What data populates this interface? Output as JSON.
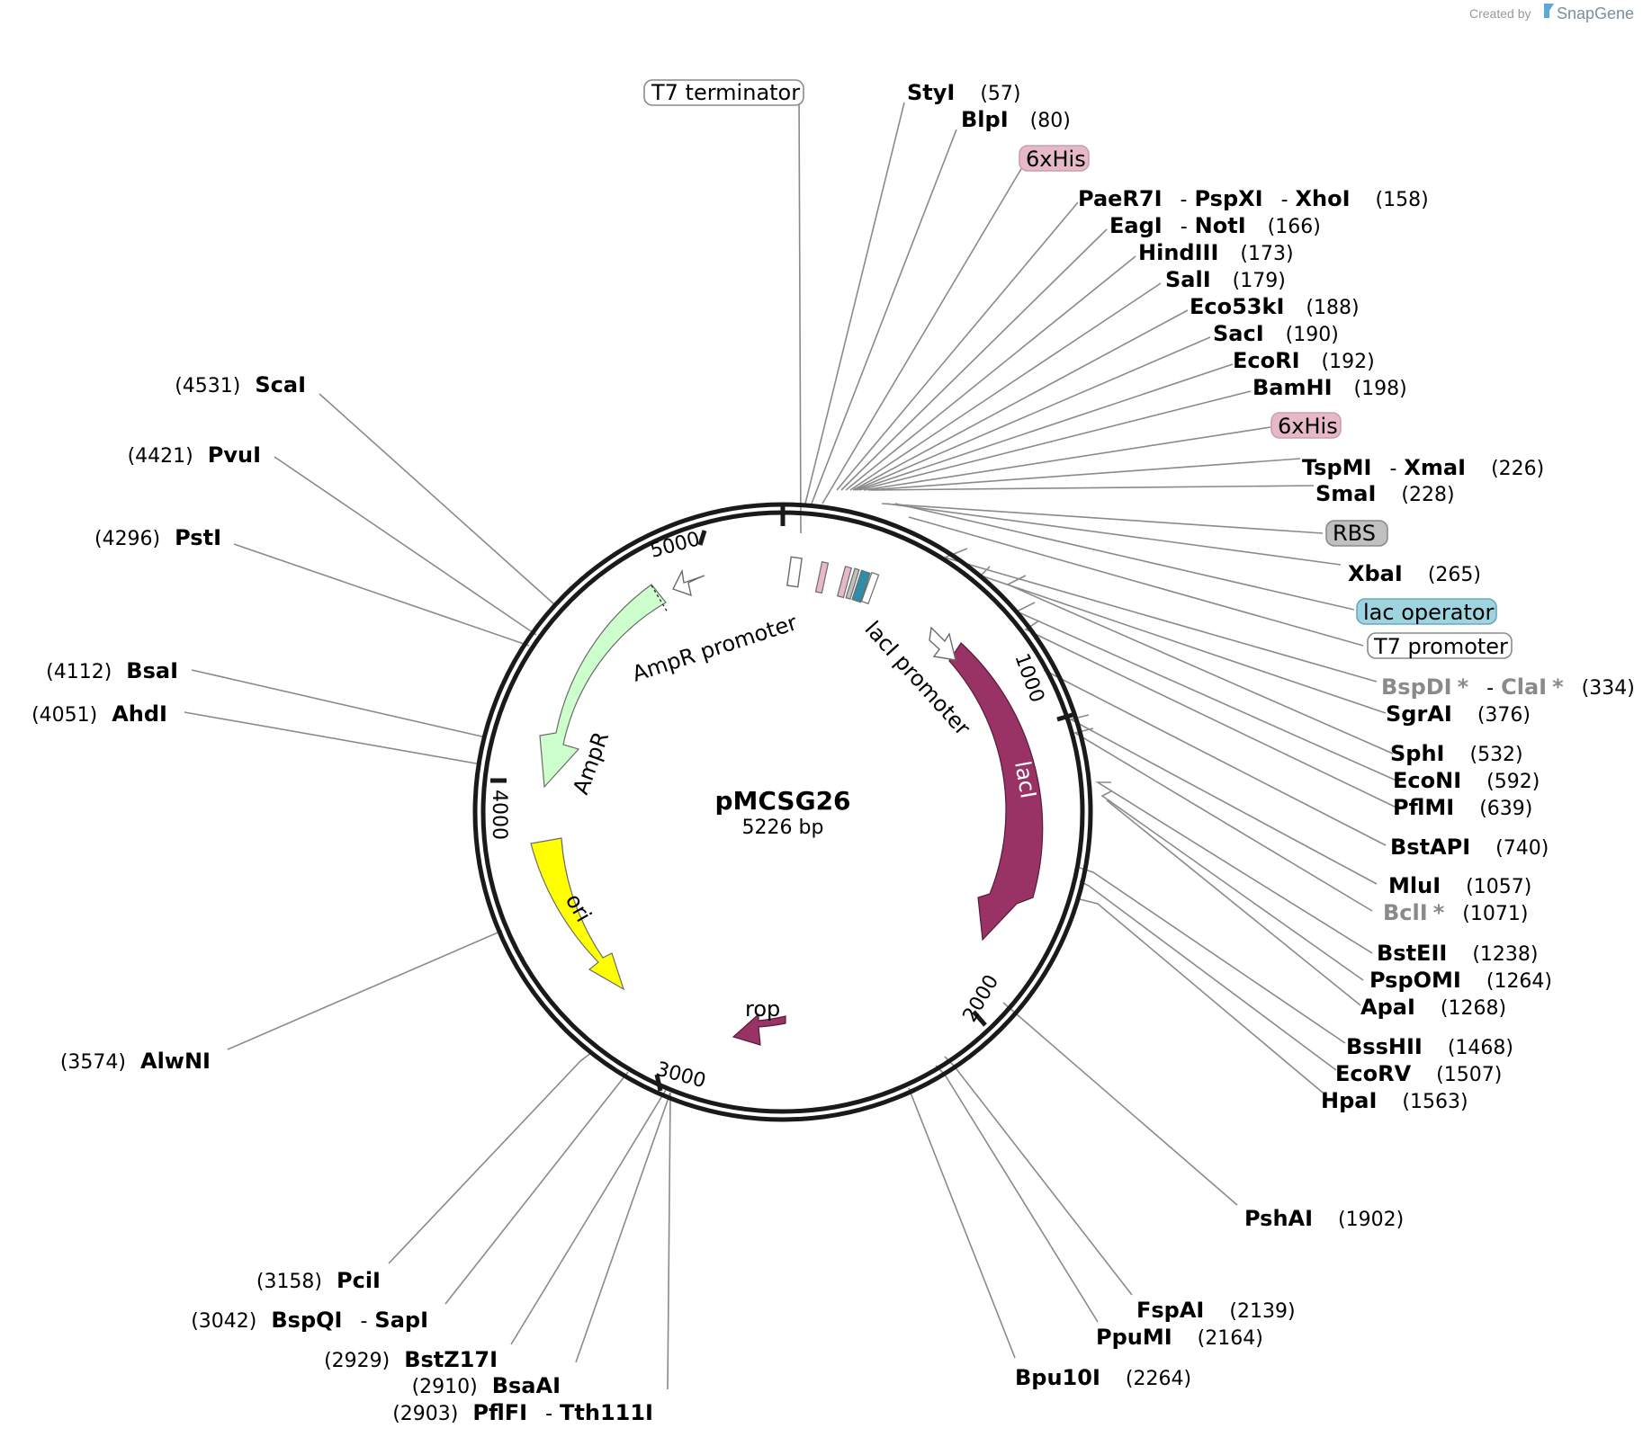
{
  "credit": {
    "prefix": "Created by",
    "brand": "SnapGene",
    "brand_color": "#5aa9d6"
  },
  "plasmid": {
    "name": "pMCSG26",
    "size": "5226 bp"
  },
  "ticks": [
    "1000",
    "2000",
    "3000",
    "4000",
    "5000"
  ],
  "features": {
    "ampr": {
      "label": "AmpR",
      "color": "#ccffcc"
    },
    "ampr_promoter": {
      "label": "AmpR promoter",
      "color": "#ffffff"
    },
    "ori": {
      "label": "ori",
      "color": "#ffff00"
    },
    "laci": {
      "label": "lacI",
      "color": "#993366"
    },
    "laci_promoter": {
      "label": "lacI promoter",
      "color": "#ffffff"
    },
    "rop": {
      "label": "rop",
      "color": "#993366"
    },
    "t7_terminator": {
      "label": "T7 terminator",
      "color": "#ffffff"
    },
    "his1": {
      "label": "6xHis",
      "color": "#e6b8c8"
    },
    "his2": {
      "label": "6xHis",
      "color": "#e6b8c8"
    },
    "rbs": {
      "label": "RBS",
      "color": "#c0c0c0"
    },
    "lac_operator": {
      "label": "lac operator",
      "color": "#9ed4e0"
    },
    "t7_promoter": {
      "label": "T7 promoter",
      "color": "#ffffff"
    }
  },
  "sites": {
    "styi": {
      "names": [
        "StyI"
      ],
      "pos": "(57)"
    },
    "blpi": {
      "names": [
        "BlpI"
      ],
      "pos": "(80)"
    },
    "paer7i": {
      "names": [
        "PaeR7I",
        "PspXI",
        "XhoI"
      ],
      "pos": "(158)"
    },
    "eagi": {
      "names": [
        "EagI",
        "NotI"
      ],
      "pos": "(166)"
    },
    "hindiii": {
      "names": [
        "HindIII"
      ],
      "pos": "(173)"
    },
    "sali": {
      "names": [
        "SalI"
      ],
      "pos": "(179)"
    },
    "eco53ki": {
      "names": [
        "Eco53kI"
      ],
      "pos": "(188)"
    },
    "saci": {
      "names": [
        "SacI"
      ],
      "pos": "(190)"
    },
    "ecori": {
      "names": [
        "EcoRI"
      ],
      "pos": "(192)"
    },
    "bamhi": {
      "names": [
        "BamHI"
      ],
      "pos": "(198)"
    },
    "tspmi": {
      "names": [
        "TspMI",
        "XmaI"
      ],
      "pos": "(226)"
    },
    "smai": {
      "names": [
        "SmaI"
      ],
      "pos": "(228)"
    },
    "xbai": {
      "names": [
        "XbaI"
      ],
      "pos": "(265)"
    },
    "bspdi": {
      "names": [
        "BspDI",
        "ClaI"
      ],
      "star": "*",
      "pos": "(334)"
    },
    "sgrai": {
      "names": [
        "SgrAI"
      ],
      "pos": "(376)"
    },
    "sphi": {
      "names": [
        "SphI"
      ],
      "pos": "(532)"
    },
    "econi": {
      "names": [
        "EcoNI"
      ],
      "pos": "(592)"
    },
    "pflmi": {
      "names": [
        "PflMI"
      ],
      "pos": "(639)"
    },
    "bstapi": {
      "names": [
        "BstAPI"
      ],
      "pos": "(740)"
    },
    "mlui": {
      "names": [
        "MluI"
      ],
      "pos": "(1057)"
    },
    "bcli": {
      "names": [
        "BclI"
      ],
      "star": "*",
      "pos": "(1071)"
    },
    "bsteii": {
      "names": [
        "BstEII"
      ],
      "pos": "(1238)"
    },
    "pspomi": {
      "names": [
        "PspOMI"
      ],
      "pos": "(1264)"
    },
    "apai": {
      "names": [
        "ApaI"
      ],
      "pos": "(1268)"
    },
    "bsshii": {
      "names": [
        "BssHII"
      ],
      "pos": "(1468)"
    },
    "ecorv": {
      "names": [
        "EcoRV"
      ],
      "pos": "(1507)"
    },
    "hpai": {
      "names": [
        "HpaI"
      ],
      "pos": "(1563)"
    },
    "pshai": {
      "names": [
        "PshAI"
      ],
      "pos": "(1902)"
    },
    "fspai": {
      "names": [
        "FspAI"
      ],
      "pos": "(2139)"
    },
    "ppumi": {
      "names": [
        "PpuMI"
      ],
      "pos": "(2164)"
    },
    "bpu10i": {
      "names": [
        "Bpu10I"
      ],
      "pos": "(2264)"
    },
    "pflfi": {
      "names": [
        "PflFI",
        "Tth111I"
      ],
      "pos": "(2903)"
    },
    "bsaai": {
      "names": [
        "BsaAI"
      ],
      "pos": "(2910)"
    },
    "bstz17i": {
      "names": [
        "BstZ17I"
      ],
      "pos": "(2929)"
    },
    "bspqi": {
      "names": [
        "BspQI",
        "SapI"
      ],
      "pos": "(3042)"
    },
    "pcii": {
      "names": [
        "PciI"
      ],
      "pos": "(3158)"
    },
    "alwni": {
      "names": [
        "AlwNI"
      ],
      "pos": "(3574)"
    },
    "ahdi": {
      "names": [
        "AhdI"
      ],
      "pos": "(4051)"
    },
    "bsai": {
      "names": [
        "BsaI"
      ],
      "pos": "(4112)"
    },
    "psti": {
      "names": [
        "PstI"
      ],
      "pos": "(4296)"
    },
    "pvui": {
      "names": [
        "PvuI"
      ],
      "pos": "(4421)"
    },
    "scai": {
      "names": [
        "ScaI"
      ],
      "pos": "(4531)"
    }
  },
  "separator": "-"
}
